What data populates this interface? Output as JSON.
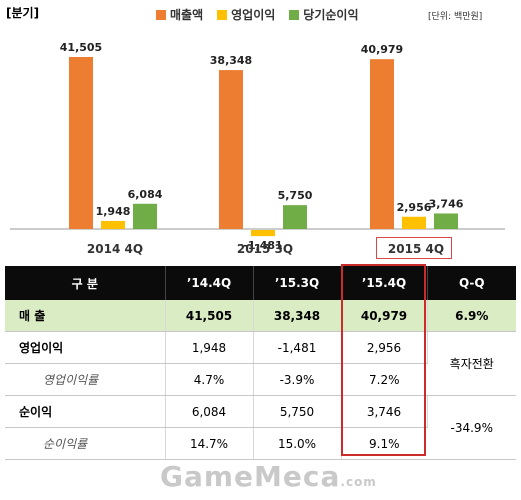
{
  "header": {
    "corner_label": "[분기]",
    "unit_label": "[단위: 백만원]"
  },
  "colors": {
    "sales": "#ed7d31",
    "operating": "#ffc000",
    "net": "#70ad47",
    "table_header_bg": "#0b0b0b",
    "sales_row_bg": "#d9ecc3",
    "highlight": "#cc2b2b"
  },
  "chart_data": {
    "type": "bar",
    "categories": [
      "2014 4Q",
      "2015 3Q",
      "2015 4Q"
    ],
    "series": [
      {
        "name": "매출액",
        "values": [
          41505,
          38348,
          40979
        ]
      },
      {
        "name": "영업이익",
        "values": [
          1948,
          -1481,
          2956
        ]
      },
      {
        "name": "당기순이익",
        "values": [
          6084,
          5750,
          3746
        ]
      }
    ],
    "data_labels": [
      [
        "41,505",
        "38,348",
        "40,979"
      ],
      [
        "1,948",
        "-1,481",
        "2,956"
      ],
      [
        "6,084",
        "5,750",
        "3,746"
      ]
    ],
    "legend_position": "top",
    "highlighted_category": "2015 4Q",
    "grid": false
  },
  "table": {
    "headers": [
      "구 분",
      "’14.4Q",
      "’15.3Q",
      "’15.4Q",
      "Q-Q"
    ],
    "rows": {
      "sales": {
        "label": "매 출",
        "v1": "41,505",
        "v2": "38,348",
        "v3": "40,979",
        "qq": "6.9%"
      },
      "op": {
        "label": "영업이익",
        "v1": "1,948",
        "v2": "-1,481",
        "v3": "2,956"
      },
      "op_margin": {
        "label": "영업이익률",
        "v1": "4.7%",
        "v2": "-3.9%",
        "v3": "7.2%"
      },
      "op_qq": "흑자전환",
      "net": {
        "label": "순이익",
        "v1": "6,084",
        "v2": "5,750",
        "v3": "3,746"
      },
      "net_margin": {
        "label": "순이익률",
        "v1": "14.7%",
        "v2": "15.0%",
        "v3": "9.1%"
      },
      "net_qq": "-34.9%"
    }
  },
  "watermark": {
    "main": "GameMeca",
    "suffix": ".com"
  }
}
